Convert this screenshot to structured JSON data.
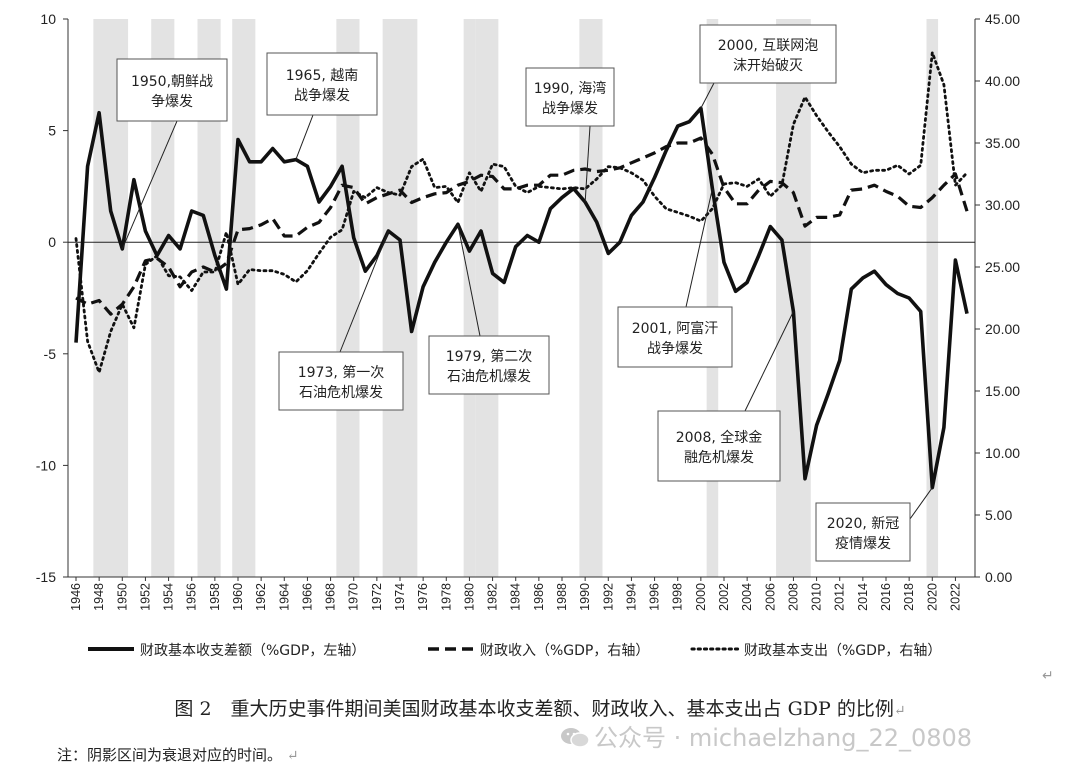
{
  "chart_data": {
    "type": "line",
    "x_range": [
      1946,
      2023
    ],
    "ylim_left": [
      -15,
      10
    ],
    "ylim_right": [
      0,
      45
    ],
    "left_ticks": [
      "-15",
      "-10",
      "-5",
      "0",
      "5",
      "10"
    ],
    "right_ticks": [
      "0.00",
      "5.00",
      "10.00",
      "15.00",
      "20.00",
      "25.00",
      "30.00",
      "35.00",
      "40.00",
      "45.00"
    ],
    "x_tick_labels": [
      "1946",
      "1948",
      "1950",
      "1952",
      "1954",
      "1956",
      "1958",
      "1960",
      "1962",
      "1964",
      "1966",
      "1968",
      "1970",
      "1972",
      "1974",
      "1976",
      "1978",
      "1980",
      "1982",
      "1984",
      "1986",
      "1988",
      "1990",
      "1992",
      "1994",
      "1996",
      "1998",
      "2000",
      "2002",
      "2004",
      "2006",
      "2008",
      "2010",
      "2012",
      "2014",
      "2016",
      "2018",
      "2020",
      "2022"
    ],
    "recessions": [
      [
        1948,
        1950
      ],
      [
        1953,
        1954
      ],
      [
        1957,
        1958
      ],
      [
        1960,
        1961
      ],
      [
        1969,
        1970
      ],
      [
        1973,
        1975
      ],
      [
        1980,
        1980
      ],
      [
        1981,
        1982
      ],
      [
        1990,
        1991
      ],
      [
        2001,
        2001
      ],
      [
        2007,
        2009
      ],
      [
        2020,
        2020
      ]
    ],
    "series": [
      {
        "name": "财政基本收支差额（%GDP，左轴）",
        "axis": "left",
        "style": "solid",
        "x": [
          1946,
          1947,
          1948,
          1949,
          1950,
          1951,
          1952,
          1953,
          1954,
          1955,
          1956,
          1957,
          1958,
          1959,
          1960,
          1961,
          1962,
          1963,
          1964,
          1965,
          1966,
          1967,
          1968,
          1969,
          1970,
          1971,
          1972,
          1973,
          1974,
          1975,
          1976,
          1977,
          1978,
          1979,
          1980,
          1981,
          1982,
          1983,
          1984,
          1985,
          1986,
          1987,
          1988,
          1989,
          1990,
          1991,
          1992,
          1993,
          1994,
          1995,
          1996,
          1997,
          1998,
          1999,
          2000,
          2001,
          2002,
          2003,
          2004,
          2005,
          2006,
          2007,
          2008,
          2009,
          2010,
          2011,
          2012,
          2013,
          2014,
          2015,
          2016,
          2017,
          2018,
          2019,
          2020,
          2021,
          2022,
          2023
        ],
        "values": [
          -4.5,
          3.4,
          5.8,
          1.4,
          -0.3,
          2.8,
          0.5,
          -0.6,
          0.3,
          -0.3,
          1.4,
          1.2,
          -0.6,
          -2.1,
          4.6,
          3.6,
          3.6,
          4.2,
          3.6,
          3.7,
          3.4,
          1.8,
          2.5,
          3.4,
          0.2,
          -1.3,
          -0.6,
          0.5,
          0.1,
          -4.0,
          -2.0,
          -0.9,
          0.0,
          0.8,
          -0.4,
          0.5,
          -1.4,
          -1.8,
          -0.2,
          0.3,
          0.0,
          1.5,
          2.0,
          2.4,
          1.8,
          0.9,
          -0.5,
          0.0,
          1.2,
          1.8,
          2.9,
          4.1,
          5.2,
          5.4,
          6.0,
          2.4,
          -0.9,
          -2.2,
          -1.8,
          -0.6,
          0.7,
          0.1,
          -3.1,
          -10.6,
          -8.2,
          -6.8,
          -5.3,
          -2.1,
          -1.6,
          -1.3,
          -1.9,
          -2.3,
          -2.5,
          -3.1,
          -11.0,
          -8.3,
          -0.8,
          -3.2
        ]
      },
      {
        "name": "财政收入（%GDP，右轴）",
        "axis": "right",
        "style": "dashed",
        "x": [
          1946,
          1947,
          1948,
          1949,
          1950,
          1951,
          1952,
          1953,
          1954,
          1955,
          1956,
          1957,
          1958,
          1959,
          1960,
          1961,
          1962,
          1963,
          1964,
          1965,
          1966,
          1967,
          1968,
          1969,
          1970,
          1971,
          1972,
          1973,
          1974,
          1975,
          1976,
          1977,
          1978,
          1979,
          1980,
          1981,
          1982,
          1983,
          1984,
          1985,
          1986,
          1987,
          1988,
          1989,
          1990,
          1991,
          1992,
          1993,
          1994,
          1995,
          1996,
          1997,
          1998,
          1999,
          2000,
          2001,
          2002,
          2003,
          2004,
          2005,
          2006,
          2007,
          2008,
          2009,
          2010,
          2011,
          2012,
          2013,
          2014,
          2015,
          2016,
          2017,
          2018,
          2019,
          2020,
          2021,
          2022,
          2023
        ],
        "values": [
          22.5,
          22.0,
          22.3,
          21.2,
          22.0,
          23.4,
          25.5,
          25.7,
          25.0,
          23.4,
          24.6,
          25.0,
          24.6,
          25.3,
          28.0,
          28.1,
          28.4,
          28.9,
          27.5,
          27.5,
          28.2,
          28.6,
          29.8,
          31.6,
          31.4,
          30.1,
          30.6,
          30.9,
          31.2,
          30.2,
          30.6,
          30.9,
          31.0,
          31.6,
          31.9,
          32.4,
          32.3,
          31.3,
          31.3,
          31.6,
          31.6,
          32.4,
          32.4,
          32.8,
          32.9,
          32.7,
          32.8,
          33.0,
          33.4,
          33.8,
          34.2,
          34.7,
          35.0,
          35.0,
          35.4,
          34.1,
          31.4,
          30.1,
          30.1,
          31.2,
          31.9,
          31.8,
          31.0,
          28.3,
          29.0,
          29.0,
          29.2,
          31.2,
          31.3,
          31.6,
          31.1,
          30.7,
          29.9,
          29.8,
          30.6,
          31.6,
          32.5,
          29.5
        ]
      },
      {
        "name": "财政基本支出（%GDP，右轴）",
        "axis": "right",
        "style": "dotted",
        "x": [
          1946,
          1947,
          1948,
          1949,
          1950,
          1951,
          1952,
          1953,
          1954,
          1955,
          1956,
          1957,
          1958,
          1959,
          1960,
          1961,
          1962,
          1963,
          1964,
          1965,
          1966,
          1967,
          1968,
          1969,
          1970,
          1971,
          1972,
          1973,
          1974,
          1975,
          1976,
          1977,
          1978,
          1979,
          1980,
          1981,
          1982,
          1983,
          1984,
          1985,
          1986,
          1987,
          1988,
          1989,
          1990,
          1991,
          1992,
          1993,
          1994,
          1995,
          1996,
          1997,
          1998,
          1999,
          2000,
          2001,
          2002,
          2003,
          2004,
          2005,
          2006,
          2007,
          2008,
          2009,
          2010,
          2011,
          2012,
          2013,
          2014,
          2015,
          2016,
          2017,
          2018,
          2019,
          2020,
          2021,
          2022,
          2023
        ],
        "values": [
          27.3,
          19.0,
          16.5,
          19.8,
          22.0,
          20.1,
          25.2,
          25.9,
          24.3,
          24.2,
          23.1,
          24.6,
          24.6,
          27.8,
          23.6,
          24.8,
          24.7,
          24.7,
          24.4,
          23.8,
          24.7,
          26.1,
          27.4,
          28.0,
          31.1,
          30.6,
          31.4,
          31.0,
          30.8,
          33.1,
          33.7,
          31.4,
          31.5,
          30.2,
          32.6,
          31.1,
          33.3,
          33.1,
          31.5,
          31.0,
          31.5,
          31.4,
          31.3,
          31.4,
          31.3,
          32.1,
          33.1,
          33.0,
          32.6,
          32.0,
          30.7,
          29.7,
          29.4,
          29.1,
          28.7,
          29.7,
          31.7,
          31.8,
          31.5,
          32.1,
          30.7,
          31.6,
          36.5,
          38.7,
          37.2,
          35.9,
          34.7,
          33.3,
          32.6,
          32.8,
          32.8,
          33.2,
          32.5,
          33.2,
          42.3,
          39.7,
          31.6,
          32.6
        ]
      }
    ],
    "annotations": [
      {
        "line1": "1950,朝鲜战",
        "line2": "争爆发",
        "year": 1950,
        "value": -0.3
      },
      {
        "line1": "1965, 越南",
        "line2": "战争爆发",
        "year": 1965,
        "value": 3.7
      },
      {
        "line1": "1973, 第一次",
        "line2": "石油危机爆发",
        "year": 1973,
        "value": 0.5
      },
      {
        "line1": "1979, 第二次",
        "line2": "石油危机爆发",
        "year": 1979,
        "value": 0.8
      },
      {
        "line1": "1990, 海湾",
        "line2": "战争爆发",
        "year": 1990,
        "value": 1.8
      },
      {
        "line1": "2000, 互联网泡",
        "line2": "沫开始破灭",
        "year": 2000,
        "value": 6.0
      },
      {
        "line1": "2001, 阿富汗",
        "line2": "战争爆发",
        "year": 2001,
        "value": 2.4
      },
      {
        "line1": "2008, 全球金",
        "line2": "融危机爆发",
        "year": 2008,
        "value": -3.1
      },
      {
        "line1": "2020, 新冠",
        "line2": "疫情爆发",
        "year": 2020,
        "value": -11.0
      }
    ]
  },
  "caption": "图 2　重大历史事件期间美国财政基本收支差额、财政收入、基本支出占 GDP 的比例",
  "note": "注：阴影区间为衰退对应的时间。",
  "watermark": "公众号 · michaelzhang_22_0808",
  "return_mark": "↵"
}
